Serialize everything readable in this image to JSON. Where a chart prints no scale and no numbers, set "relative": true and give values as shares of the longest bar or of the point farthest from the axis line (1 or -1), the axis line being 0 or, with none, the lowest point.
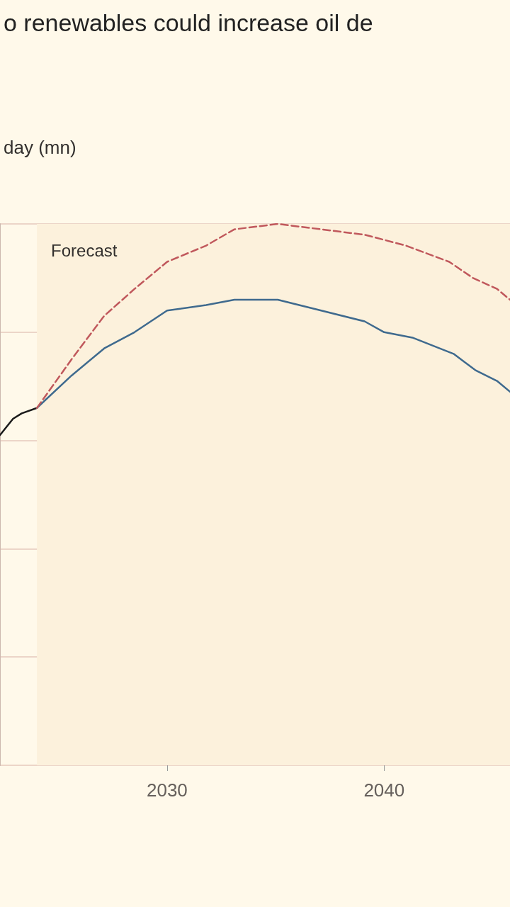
{
  "chart_data": {
    "type": "line",
    "title": "o renewables could increase oil de",
    "ylabel": "day (mn)",
    "relative": true,
    "grid": "y",
    "marker": "none",
    "xlim": [
      2022.3,
      2045.8
    ],
    "xticks": [
      2030,
      2040
    ],
    "bands": [
      {
        "axis": "x",
        "from": 2024,
        "to": 2045.8,
        "label": "Forecast",
        "color": "#fcf1dc"
      }
    ],
    "series": [
      {
        "color": "#1a1a1a",
        "line_style": "solid",
        "x": [
          2022.3,
          2022.9,
          2023.3,
          2024
        ],
        "values": [
          0.61,
          0.64,
          0.65,
          0.66
        ]
      },
      {
        "color": "#3f6a8e",
        "line_style": "solid",
        "x": [
          2024,
          2025.6,
          2027.1,
          2028.5,
          2030,
          2031.8,
          2033.1,
          2035.1,
          2037.1,
          2039.1,
          2040,
          2041.3,
          2043.2,
          2044.2,
          2045.2,
          2045.8
        ],
        "values": [
          0.66,
          0.72,
          0.77,
          0.8,
          0.84,
          0.85,
          0.86,
          0.86,
          0.84,
          0.82,
          0.8,
          0.79,
          0.76,
          0.73,
          0.71,
          0.69
        ]
      },
      {
        "color": "#c0585c",
        "line_style": "dashed",
        "x": [
          2024,
          2025.6,
          2027.1,
          2028.5,
          2030,
          2031.8,
          2033.1,
          2035.1,
          2037.1,
          2039.1,
          2041,
          2043,
          2044.1,
          2045.2,
          2045.8
        ],
        "values": [
          0.66,
          0.75,
          0.83,
          0.88,
          0.93,
          0.96,
          0.99,
          1,
          0.99,
          0.98,
          0.96,
          0.93,
          0.9,
          0.88,
          0.86
        ]
      }
    ]
  }
}
